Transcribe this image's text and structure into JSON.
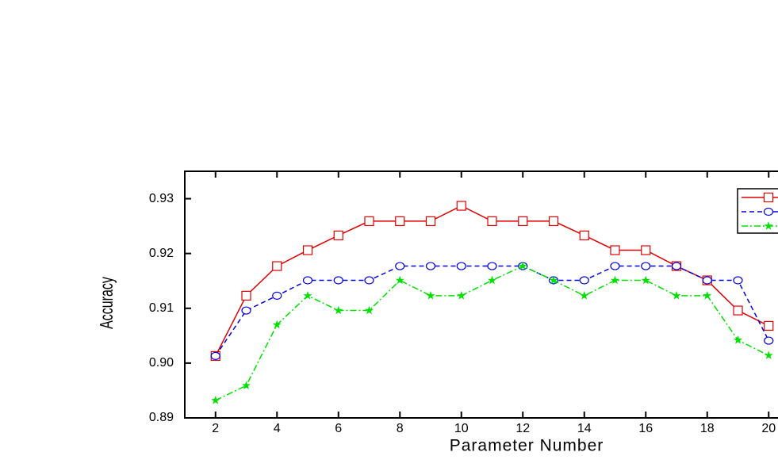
{
  "chart_data": {
    "type": "line",
    "x_label": "Parameter Number",
    "y_label": "Accuracy",
    "x": [
      2,
      3,
      4,
      5,
      6,
      7,
      8,
      9,
      10,
      11,
      12,
      13,
      14,
      15,
      16,
      17,
      18,
      19,
      20
    ],
    "series": [
      {
        "color": "#e00000",
        "marker": "square",
        "dash": "solid",
        "values": [
          0.9013,
          0.9123,
          0.9177,
          0.9206,
          0.9233,
          0.9259,
          0.9259,
          0.9259,
          0.9287,
          0.9259,
          0.9259,
          0.9259,
          0.9233,
          0.9206,
          0.9206,
          0.9177,
          0.9151,
          0.9096,
          0.9068
        ]
      },
      {
        "color": "#0000e0",
        "marker": "circle",
        "dash": "dashed",
        "values": [
          0.9013,
          0.9096,
          0.9123,
          0.9151,
          0.9151,
          0.9151,
          0.9177,
          0.9177,
          0.9177,
          0.9177,
          0.9177,
          0.9151,
          0.9151,
          0.9177,
          0.9177,
          0.9177,
          0.9151,
          0.9151,
          0.9041
        ]
      },
      {
        "color": "#00e000",
        "marker": "star",
        "dash": "dashdot",
        "values": [
          0.8932,
          0.8959,
          0.907,
          0.9123,
          0.9096,
          0.9096,
          0.9151,
          0.9123,
          0.9123,
          0.9151,
          0.9177,
          0.9151,
          0.9123,
          0.9151,
          0.9151,
          0.9123,
          0.9123,
          0.9042,
          0.9014
        ]
      }
    ],
    "xlim": [
      1,
      21
    ],
    "xticks": [
      2,
      4,
      6,
      8,
      10,
      12,
      14,
      16,
      18,
      20
    ],
    "ylim": [
      0.89,
      0.935
    ],
    "yticks": [
      0.89,
      {
        "value": 0.9,
        "label": "0.90"
      },
      0.91,
      0.92,
      0.93
    ],
    "legend": "upper right"
  }
}
